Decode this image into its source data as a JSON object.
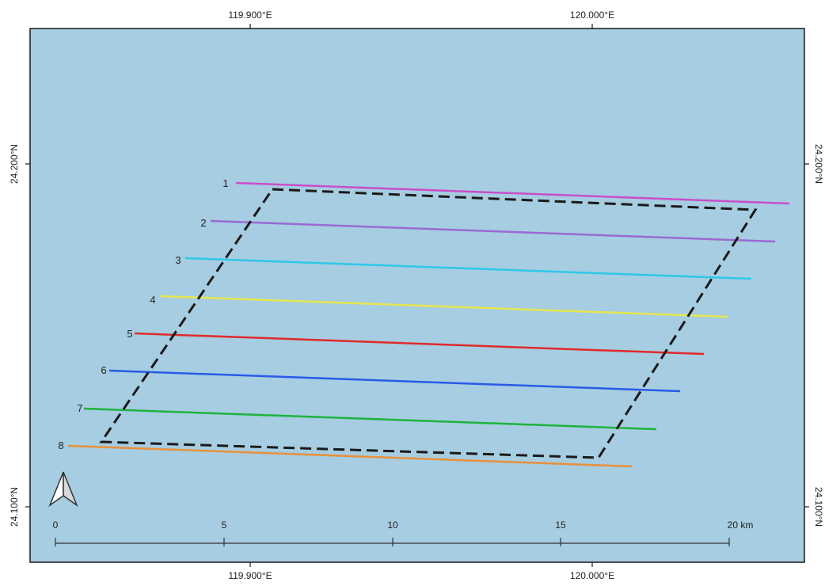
{
  "map": {
    "background_color": "#a6cde1",
    "frame_color": "#1a1a1a",
    "top_ticks": [
      "119.900°E",
      "120.000°E"
    ],
    "bottom_ticks": [
      "119.900°E",
      "120.000°E"
    ],
    "left_ticks": [
      "24.200°N",
      "24.100°N"
    ],
    "right_ticks": [
      "24.200°N",
      "24.100°N"
    ]
  },
  "survey_lines": [
    {
      "label": "1",
      "color": "#c94ec9"
    },
    {
      "label": "2",
      "color": "#9a6ad2"
    },
    {
      "label": "3",
      "color": "#2ec8e6"
    },
    {
      "label": "4",
      "color": "#e6e64e"
    },
    {
      "label": "5",
      "color": "#e02a2a"
    },
    {
      "label": "6",
      "color": "#2a5ae8"
    },
    {
      "label": "7",
      "color": "#1eb33e"
    },
    {
      "label": "8",
      "color": "#e8903a"
    }
  ],
  "study_area": {
    "style": "dashed",
    "color": "#1a1a1a"
  },
  "scale_bar": {
    "ticks": [
      "0",
      "5",
      "10",
      "15",
      "20 km"
    ]
  },
  "north_arrow": {
    "icon": "north-arrow-icon"
  }
}
